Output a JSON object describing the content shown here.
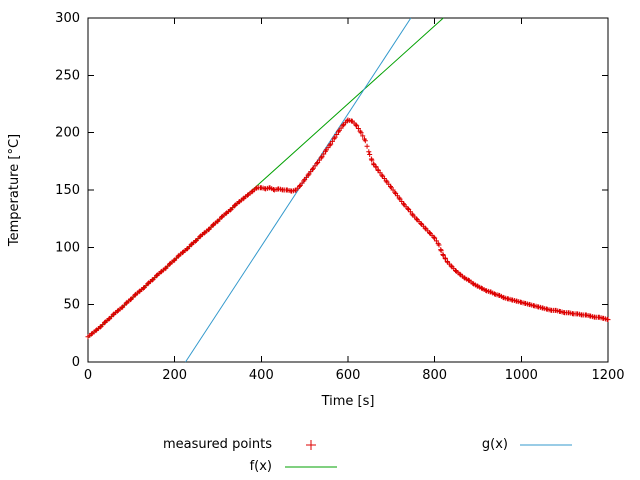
{
  "figure": {
    "background": "#ffffff",
    "border_color": "#000000"
  },
  "axes": {
    "xlabel": "Time [s]",
    "ylabel": "Temperature [°C]",
    "xlim": [
      0,
      1200
    ],
    "ylim": [
      0,
      300
    ],
    "xticks": [
      0,
      200,
      400,
      600,
      800,
      1000,
      1200
    ],
    "yticks": [
      0,
      50,
      100,
      150,
      200,
      250,
      300
    ]
  },
  "chart_data": {
    "type": "scatter",
    "title": "",
    "xlabel": "Time [s]",
    "ylabel": "Temperature [°C]",
    "xlim": [
      0,
      1200
    ],
    "ylim": [
      0,
      300
    ],
    "grid": false,
    "legend_position": "below",
    "series": [
      {
        "name": "measured points",
        "type": "points",
        "marker": "plus",
        "color": "#dd0000",
        "marker_step": 4,
        "points": [
          [
            0,
            22
          ],
          [
            10,
            25
          ],
          [
            20,
            28
          ],
          [
            30,
            31
          ],
          [
            40,
            35
          ],
          [
            50,
            38
          ],
          [
            60,
            42
          ],
          [
            70,
            45
          ],
          [
            80,
            48
          ],
          [
            90,
            52
          ],
          [
            100,
            55
          ],
          [
            110,
            59
          ],
          [
            120,
            62
          ],
          [
            130,
            65
          ],
          [
            140,
            69
          ],
          [
            150,
            72
          ],
          [
            160,
            76
          ],
          [
            170,
            79
          ],
          [
            180,
            82
          ],
          [
            190,
            86
          ],
          [
            200,
            89
          ],
          [
            210,
            93
          ],
          [
            220,
            96
          ],
          [
            230,
            99
          ],
          [
            240,
            103
          ],
          [
            250,
            106
          ],
          [
            260,
            110
          ],
          [
            270,
            113
          ],
          [
            280,
            116
          ],
          [
            290,
            120
          ],
          [
            300,
            123
          ],
          [
            310,
            127
          ],
          [
            320,
            130
          ],
          [
            330,
            133
          ],
          [
            340,
            137
          ],
          [
            350,
            140
          ],
          [
            360,
            143
          ],
          [
            370,
            146
          ],
          [
            380,
            149
          ],
          [
            390,
            152
          ],
          [
            400,
            152
          ],
          [
            410,
            151
          ],
          [
            420,
            152
          ],
          [
            430,
            150
          ],
          [
            440,
            151
          ],
          [
            450,
            150
          ],
          [
            460,
            150
          ],
          [
            470,
            149
          ],
          [
            480,
            150
          ],
          [
            490,
            154
          ],
          [
            500,
            159
          ],
          [
            510,
            164
          ],
          [
            520,
            169
          ],
          [
            530,
            174
          ],
          [
            540,
            179
          ],
          [
            550,
            185
          ],
          [
            560,
            190
          ],
          [
            570,
            196
          ],
          [
            580,
            202
          ],
          [
            590,
            207
          ],
          [
            600,
            211
          ],
          [
            610,
            210
          ],
          [
            620,
            206
          ],
          [
            630,
            200
          ],
          [
            640,
            193
          ],
          [
            650,
            181
          ],
          [
            655,
            176
          ],
          [
            660,
            172
          ],
          [
            665,
            170
          ],
          [
            670,
            167
          ],
          [
            680,
            162
          ],
          [
            690,
            157
          ],
          [
            700,
            152
          ],
          [
            710,
            147
          ],
          [
            720,
            142
          ],
          [
            730,
            137
          ],
          [
            740,
            133
          ],
          [
            750,
            128
          ],
          [
            760,
            124
          ],
          [
            770,
            120
          ],
          [
            780,
            116
          ],
          [
            790,
            112
          ],
          [
            800,
            108
          ],
          [
            810,
            102
          ],
          [
            815,
            97
          ],
          [
            820,
            93
          ],
          [
            825,
            90
          ],
          [
            830,
            87
          ],
          [
            840,
            83
          ],
          [
            850,
            79
          ],
          [
            860,
            76
          ],
          [
            870,
            73
          ],
          [
            880,
            71
          ],
          [
            890,
            68
          ],
          [
            900,
            66
          ],
          [
            910,
            64
          ],
          [
            920,
            62
          ],
          [
            930,
            61
          ],
          [
            940,
            59
          ],
          [
            950,
            58
          ],
          [
            960,
            56
          ],
          [
            970,
            55
          ],
          [
            980,
            54
          ],
          [
            990,
            53
          ],
          [
            1000,
            52
          ],
          [
            1010,
            51
          ],
          [
            1020,
            50
          ],
          [
            1030,
            49
          ],
          [
            1040,
            48
          ],
          [
            1050,
            47
          ],
          [
            1060,
            46
          ],
          [
            1070,
            45
          ],
          [
            1080,
            45
          ],
          [
            1090,
            44
          ],
          [
            1100,
            43
          ],
          [
            1110,
            43
          ],
          [
            1120,
            42
          ],
          [
            1130,
            42
          ],
          [
            1140,
            41
          ],
          [
            1150,
            41
          ],
          [
            1160,
            40
          ],
          [
            1170,
            39
          ],
          [
            1180,
            39
          ],
          [
            1190,
            38
          ],
          [
            1200,
            37
          ]
        ]
      },
      {
        "name": "f(x)",
        "type": "line",
        "color": "#00a000",
        "points": [
          [
            0,
            21
          ],
          [
            820,
            300
          ]
        ]
      },
      {
        "name": "g(x)",
        "type": "line",
        "color": "#3399cc",
        "points": [
          [
            225,
            0
          ],
          [
            745,
            300
          ]
        ]
      }
    ]
  }
}
